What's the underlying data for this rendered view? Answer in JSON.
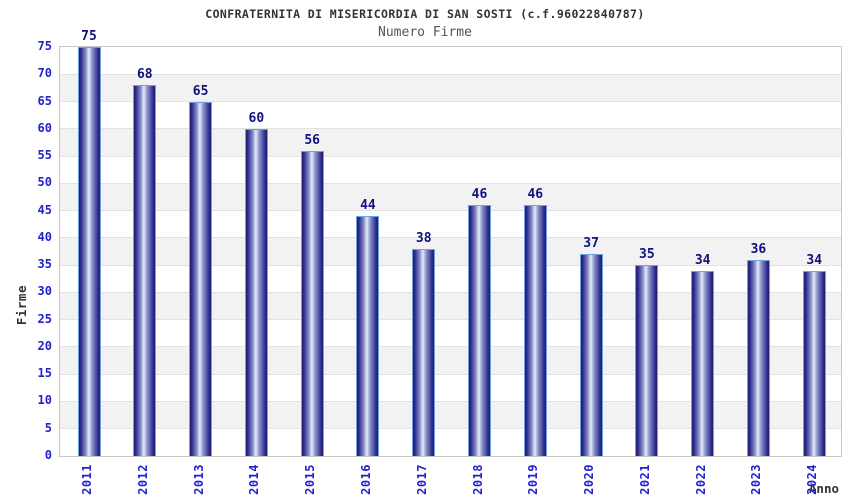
{
  "chart_data": {
    "type": "bar",
    "title": "CONFRATERNITA DI MISERICORDIA DI SAN SOSTI (c.f.96022840787)",
    "subtitle": "Numero Firme",
    "xlabel": "Anno",
    "ylabel": "Firme",
    "categories": [
      "2011",
      "2012",
      "2013",
      "2014",
      "2015",
      "2016",
      "2017",
      "2018",
      "2019",
      "2020",
      "2021",
      "2022",
      "2023",
      "2024"
    ],
    "values": [
      75,
      68,
      65,
      60,
      56,
      44,
      38,
      46,
      46,
      37,
      35,
      34,
      36,
      34
    ],
    "ylim": [
      0,
      75
    ],
    "ytick_step": 5,
    "grid": "horizontal-bands-alternating",
    "legend": "none",
    "value_labels": "above-bars"
  },
  "colors": {
    "bar_dark": "#1d1d78",
    "bar_mid": "#8a92cc",
    "bar_highlight": "#e8ebfa",
    "bar_border": "#6fa0e0",
    "tick_label": "#2222cc",
    "value_label": "#10107e",
    "title_text": "#333333",
    "subtitle_text": "#555555",
    "axis_title_text": "#333333",
    "band_gray": "#f2f2f2",
    "band_white": "#ffffff",
    "grid_line": "#e2e2e2",
    "plot_border": "#c8c8c8",
    "background": "#ffffff"
  }
}
